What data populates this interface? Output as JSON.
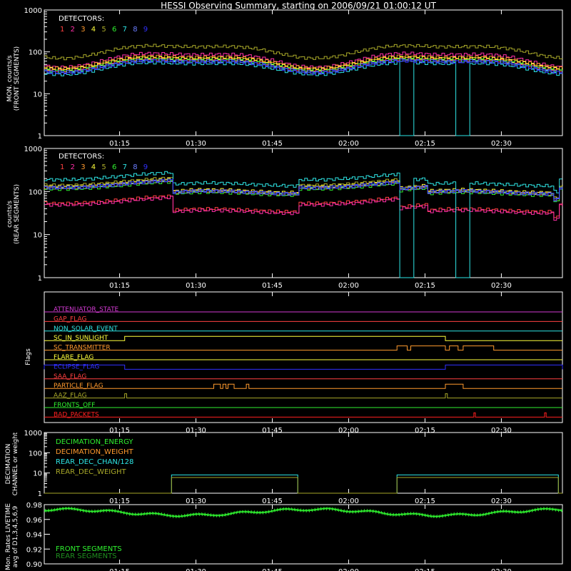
{
  "chart_data": {
    "title": "HESSI Observing Summary, starting on 2006/09/21 01:00:12 UT",
    "time_ticks": [
      "01:15",
      "01:30",
      "01:45",
      "02:00",
      "02:15",
      "02:30"
    ],
    "time_range_minutes": [
      0.2,
      102
    ],
    "panels": [
      {
        "type": "line",
        "ylabel": [
          "MON. counts/s",
          "(FRONT SEGMENTS)"
        ],
        "yscale": "log",
        "ylim": [
          1,
          1000
        ],
        "yticks": [
          "1",
          "10",
          "100",
          "1000"
        ],
        "legend_title": "DETECTORS:",
        "legend_labels": [
          "1",
          "2",
          "3",
          "4",
          "5",
          "6",
          "7",
          "8",
          "9"
        ],
        "series_colors": [
          "#ff4040",
          "#ff2fa8",
          "#ff9a2e",
          "#ffff3c",
          "#a8a829",
          "#2ff02f",
          "#2ee6e6",
          "#6b7dff",
          "#3030ff"
        ],
        "series": [
          {
            "name": "1",
            "base": 55,
            "amp": 0.3
          },
          {
            "name": "2",
            "base": 70,
            "amp": 0.35
          },
          {
            "name": "3",
            "base": 62,
            "amp": 0.3
          },
          {
            "name": "4",
            "base": 58,
            "amp": 0.3
          },
          {
            "name": "5",
            "base": 110,
            "amp": 0.32
          },
          {
            "name": "6",
            "base": 52,
            "amp": 0.3
          },
          {
            "name": "7",
            "base": 44,
            "amp": 0.3,
            "dropouts": [
              [
                70,
                72.5
              ],
              [
                81,
                83.5
              ]
            ]
          },
          {
            "name": "8",
            "base": 50,
            "amp": 0.3
          },
          {
            "name": "9",
            "base": 48,
            "amp": 0.3
          }
        ]
      },
      {
        "type": "line",
        "ylabel": [
          "counts/s",
          "(REAR SEGMENTS)"
        ],
        "yscale": "log",
        "ylim": [
          1,
          1000
        ],
        "yticks": [
          "1",
          "10",
          "100",
          "1000"
        ],
        "legend_title": "DETECTORS:",
        "legend_labels": [
          "1",
          "2",
          "3",
          "4",
          "5",
          "6",
          "7",
          "8",
          "9"
        ],
        "series_colors": [
          "#ff4040",
          "#ff2fa8",
          "#ff9a2e",
          "#ffff3c",
          "#a8a829",
          "#2ff02f",
          "#2ee6e6",
          "#6b7dff",
          "#3030ff"
        ],
        "series": [
          {
            "name": "1",
            "base": 65,
            "amp": 0.2
          },
          {
            "name": "2",
            "base": 60,
            "amp": 0.2
          },
          {
            "name": "3",
            "base": 150,
            "amp": 0.2
          },
          {
            "name": "4",
            "base": 160,
            "amp": 0.2
          },
          {
            "name": "5",
            "base": 170,
            "amp": 0.2
          },
          {
            "name": "6",
            "base": 140,
            "amp": 0.2
          },
          {
            "name": "7",
            "base": 230,
            "amp": 0.2,
            "dropouts": [
              [
                70,
                72.5
              ],
              [
                81,
                83.5
              ]
            ]
          },
          {
            "name": "8",
            "base": 150,
            "amp": 0.2
          },
          {
            "name": "9",
            "base": 150,
            "amp": 0.2
          }
        ]
      }
    ],
    "flags_panel": {
      "ylabel": "Flags",
      "rows": [
        {
          "name": "ATTENUATOR_STATE",
          "color": "#d23ad2",
          "segments": []
        },
        {
          "name": "GAP_FLAG",
          "color": "#ff4040",
          "segments": []
        },
        {
          "name": "NON_SOLAR_EVENT",
          "color": "#2ee6e6",
          "segments": []
        },
        {
          "name": "SC_IN_SUNLIGHT",
          "color": "#ffff3c",
          "segments": [
            [
              16,
              79
            ]
          ]
        },
        {
          "name": "SC_TRANSMITTER",
          "color": "#ff9a2e",
          "segments": [
            [
              69.5,
              71.5
            ],
            [
              72.2,
              79
            ],
            [
              79.8,
              81.5
            ],
            [
              82.5,
              88.5
            ]
          ]
        },
        {
          "name": "FLARE_FLAG",
          "color": "#ffff3c",
          "segments": []
        },
        {
          "name": "ECLIPSE_FLAG",
          "color": "#3030ff",
          "segments": [
            [
              0,
              16
            ],
            [
              79,
              102
            ]
          ]
        },
        {
          "name": "SAA_FLAG",
          "color": "#ff4040",
          "segments": []
        },
        {
          "name": "PARTICLE_FLAG",
          "color": "#ff9a2e",
          "segments": [
            [
              33.5,
              34.8
            ],
            [
              35.3,
              35.9
            ],
            [
              36.3,
              37.5
            ],
            [
              39.9,
              40.4
            ],
            [
              79,
              82.5
            ]
          ]
        },
        {
          "name": "AAZ_FLAG",
          "color": "#a8a829",
          "segments": [
            [
              16,
              16.4
            ],
            [
              79,
              79.4
            ]
          ]
        },
        {
          "name": "FRONTS_OFF",
          "color": "#2ff02f",
          "segments": []
        },
        {
          "name": "BAD_PACKETS",
          "color": "#ff2020",
          "segments": [
            [
              84.6,
              84.9
            ],
            [
              98.5,
              98.8
            ]
          ]
        }
      ]
    },
    "decimation_panel": {
      "ylabel": [
        "DECIMATION",
        "CHANNEL or weight"
      ],
      "yscale": "log",
      "ylim": [
        1,
        1000
      ],
      "yticks": [
        "1",
        "10",
        "100",
        "1000"
      ],
      "series": [
        {
          "name": "DECIMATION_ENERGY",
          "color": "#2ff02f"
        },
        {
          "name": "DECIMATION_WEIGHT",
          "color": "#ff9a2e"
        },
        {
          "name": "REAR_DEC_CHAN/128",
          "color": "#2ee6e6",
          "steps": [
            [
              0,
              1
            ],
            [
              25.2,
              8
            ],
            [
              50,
              1
            ],
            [
              69.5,
              8
            ],
            [
              101.2,
              1
            ]
          ]
        },
        {
          "name": "REAR_DEC_WEIGHT",
          "color": "#a8a829",
          "steps": [
            [
              0,
              1
            ],
            [
              25.2,
              6
            ],
            [
              50,
              1
            ],
            [
              69.5,
              6
            ],
            [
              101.2,
              1
            ]
          ]
        }
      ]
    },
    "livetime_panel": {
      "ylabel": [
        "Mon. Rates LIVETIME",
        "avg of D1,3,4,5,6,9"
      ],
      "ylim": [
        0.9,
        0.98
      ],
      "yticks": [
        "0.90",
        "0.92",
        "0.94",
        "0.96",
        "0.98"
      ],
      "legend": [
        {
          "name": "FRONT SEGMENTS",
          "color": "#2ff02f"
        },
        {
          "name": "REAR SEGMENTS",
          "color": "#1f8f1f"
        }
      ],
      "base": 0.9735,
      "dip": 0.008
    }
  }
}
